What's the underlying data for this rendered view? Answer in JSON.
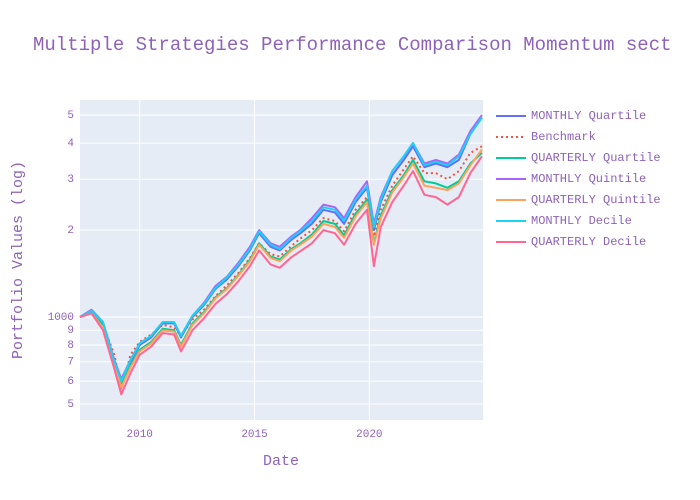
{
  "chart_data": {
    "type": "line",
    "title": "Multiple Strategies Performance Comparison Momentum sect",
    "x_label": "Date",
    "y_label": "Portfolio Values (log)",
    "log_y": true,
    "grid": true,
    "legend_position": "right",
    "xlim": [
      2007.4,
      2024.95
    ],
    "xticks": [
      2010,
      2015,
      2020
    ],
    "ylim": [
      440,
      5640
    ],
    "yticks": [
      {
        "value": 500,
        "label": "5"
      },
      {
        "value": 600,
        "label": "6"
      },
      {
        "value": 700,
        "label": "7"
      },
      {
        "value": 800,
        "label": "8"
      },
      {
        "value": 900,
        "label": "9"
      },
      1000,
      {
        "value": 2000,
        "label": "2"
      },
      {
        "value": 3000,
        "label": "3"
      },
      {
        "value": 4000,
        "label": "4"
      },
      {
        "value": 5000,
        "label": "5"
      }
    ],
    "x": [
      2007.4,
      2007.9,
      2008.4,
      2008.9,
      2009.2,
      2009.6,
      2010.0,
      2010.5,
      2011.0,
      2011.5,
      2011.8,
      2012.3,
      2012.8,
      2013.3,
      2013.8,
      2014.3,
      2014.8,
      2015.2,
      2015.7,
      2016.1,
      2016.6,
      2017.0,
      2017.5,
      2018.0,
      2018.5,
      2018.9,
      2019.4,
      2019.9,
      2020.2,
      2020.5,
      2021.0,
      2021.5,
      2021.9,
      2022.4,
      2022.9,
      2023.4,
      2023.9,
      2024.4,
      2024.9
    ],
    "series": [
      {
        "name": "MONTHLY Quartile",
        "color": "#636efa",
        "dash": "solid",
        "values": [
          1000,
          1050,
          950,
          700,
          600,
          700,
          800,
          850,
          950,
          950,
          850,
          1000,
          1100,
          1250,
          1350,
          1500,
          1700,
          1950,
          1750,
          1700,
          1850,
          1950,
          2100,
          2350,
          2300,
          2100,
          2500,
          2800,
          2000,
          2500,
          3100,
          3500,
          3900,
          3300,
          3400,
          3300,
          3500,
          4300,
          4900
        ]
      },
      {
        "name": "Benchmark",
        "color": "#ef553b",
        "dash": "dot",
        "values": [
          1000,
          1040,
          940,
          740,
          560,
          740,
          820,
          870,
          940,
          920,
          860,
          980,
          1060,
          1180,
          1290,
          1420,
          1600,
          1800,
          1650,
          1620,
          1760,
          1870,
          2000,
          2200,
          2150,
          1980,
          2350,
          2600,
          1900,
          2350,
          2850,
          3250,
          3600,
          3150,
          3150,
          3000,
          3200,
          3700,
          3900
        ]
      },
      {
        "name": "QUARTERLY Quartile",
        "color": "#00cc96",
        "dash": "solid",
        "values": [
          1000,
          1040,
          930,
          690,
          580,
          680,
          770,
          820,
          910,
          900,
          800,
          950,
          1040,
          1170,
          1260,
          1400,
          1580,
          1800,
          1620,
          1580,
          1720,
          1800,
          1930,
          2150,
          2100,
          1920,
          2280,
          2550,
          1800,
          2250,
          2750,
          3100,
          3500,
          2950,
          2900,
          2800,
          2950,
          3400,
          3700
        ]
      },
      {
        "name": "MONTHLY Quintile",
        "color": "#ab63fa",
        "dash": "solid",
        "values": [
          1000,
          1060,
          960,
          710,
          610,
          710,
          810,
          860,
          960,
          960,
          860,
          1010,
          1120,
          1280,
          1380,
          1540,
          1750,
          2000,
          1800,
          1750,
          1900,
          2000,
          2200,
          2450,
          2400,
          2200,
          2600,
          2950,
          2100,
          2600,
          3200,
          3600,
          4000,
          3400,
          3500,
          3400,
          3650,
          4400,
          5000
        ]
      },
      {
        "name": "QUARTERLY Quintile",
        "color": "#ffa15a",
        "dash": "solid",
        "values": [
          1000,
          1030,
          920,
          680,
          570,
          670,
          760,
          810,
          900,
          890,
          790,
          940,
          1030,
          1160,
          1250,
          1390,
          1560,
          1780,
          1600,
          1560,
          1700,
          1780,
          1900,
          2100,
          2050,
          1880,
          2230,
          2500,
          1780,
          2200,
          2700,
          3050,
          3400,
          2850,
          2800,
          2750,
          2900,
          3350,
          3800
        ]
      },
      {
        "name": "MONTHLY Decile",
        "color": "#19d3f3",
        "dash": "solid",
        "values": [
          1000,
          1050,
          960,
          700,
          600,
          710,
          810,
          860,
          960,
          960,
          860,
          1010,
          1110,
          1260,
          1370,
          1520,
          1720,
          1980,
          1780,
          1720,
          1880,
          1980,
          2150,
          2400,
          2350,
          2150,
          2550,
          2850,
          2050,
          2550,
          3200,
          3600,
          4000,
          3350,
          3450,
          3350,
          3600,
          4300,
          4900
        ]
      },
      {
        "name": "QUARTERLY Decile",
        "color": "#ff6692",
        "dash": "solid",
        "values": [
          1000,
          1030,
          900,
          660,
          540,
          640,
          740,
          790,
          880,
          870,
          760,
          900,
          990,
          1110,
          1200,
          1330,
          1500,
          1700,
          1520,
          1480,
          1610,
          1690,
          1800,
          2000,
          1950,
          1780,
          2100,
          2350,
          1500,
          2050,
          2500,
          2850,
          3200,
          2650,
          2600,
          2450,
          2600,
          3150,
          3600
        ]
      }
    ]
  }
}
